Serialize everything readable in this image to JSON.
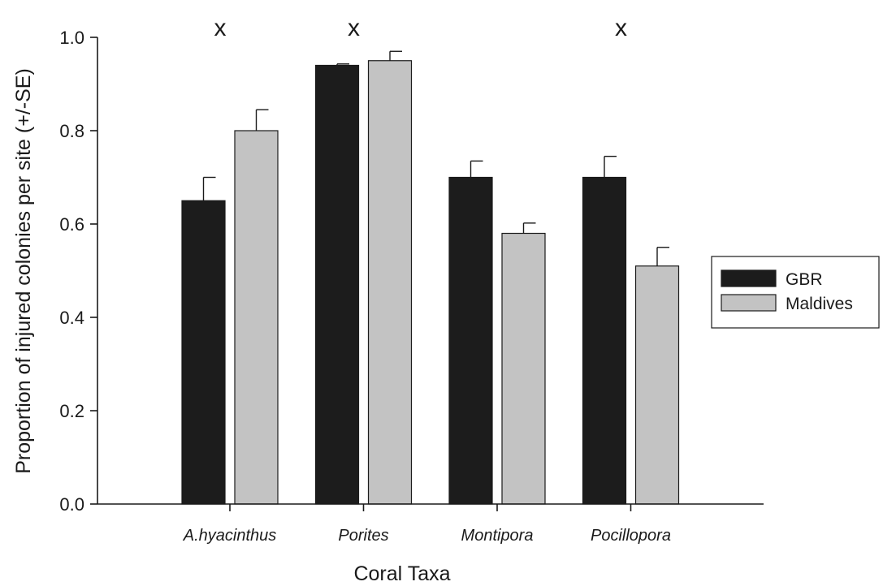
{
  "chart_data": {
    "type": "bar",
    "xlabel": "Coral Taxa",
    "ylabel": "Proportion of injured colonies per site (+/-SE)",
    "ylim": [
      0,
      1.0
    ],
    "yticks": [
      "0.0",
      "0.2",
      "0.4",
      "0.6",
      "0.8",
      "1.0"
    ],
    "categories": [
      "A.hyacinthus",
      "Porites",
      "Montipora",
      "Pocillopora"
    ],
    "series": [
      {
        "name": "GBR",
        "color": "#1c1c1c",
        "values": [
          0.65,
          0.94,
          0.7,
          0.7
        ],
        "se": [
          0.05,
          0.003,
          0.035,
          0.045
        ]
      },
      {
        "name": "Maldives",
        "color": "#c3c3c3",
        "values": [
          0.8,
          0.95,
          0.58,
          0.51
        ],
        "se": [
          0.045,
          0.02,
          0.022,
          0.04
        ]
      }
    ],
    "annotations": [
      "x",
      "x",
      "",
      "x"
    ],
    "legend_position": "right"
  }
}
